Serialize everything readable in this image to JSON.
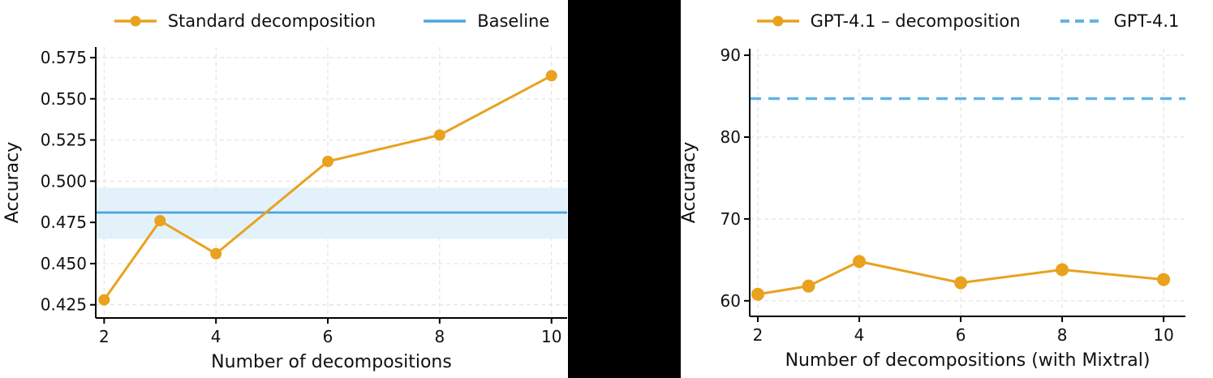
{
  "figure": {
    "background": "#ffffff",
    "divider_color": "#000000",
    "grid_color": "#e3e3e3",
    "spine_color": "#000000",
    "text_color": "#111111"
  },
  "chart_data": [
    {
      "type": "line",
      "title": "",
      "xlabel": "Number of decompositions",
      "ylabel": "Accuracy",
      "x": [
        2,
        3,
        4,
        6,
        8,
        10
      ],
      "series": [
        {
          "name": "Standard decomposition",
          "values": [
            0.428,
            0.476,
            0.456,
            0.512,
            0.528,
            0.564
          ],
          "color": "#E9A21E"
        }
      ],
      "baseline": {
        "name": "Baseline",
        "value": 0.481,
        "band": [
          0.465,
          0.496
        ],
        "color": "#4AA6DC",
        "band_color": "#E3F1FB"
      },
      "xticks": [
        2,
        4,
        6,
        8,
        10
      ],
      "yticks": [
        0.425,
        0.45,
        0.475,
        0.5,
        0.525,
        0.55,
        0.575
      ],
      "ytick_decimals": 3,
      "xlim": [
        1.85,
        10.28
      ],
      "ylim": [
        0.417,
        0.5814
      ],
      "grid": true,
      "legend_position": "top-center",
      "legend": [
        {
          "label": "Standard decomposition",
          "style": "line-marker",
          "color": "#E9A21E"
        },
        {
          "label": "Baseline",
          "style": "line",
          "color": "#4AA6DC"
        }
      ]
    },
    {
      "type": "line",
      "title": "",
      "xlabel": "Number of decompositions (with Mixtral)",
      "ylabel": "Accuracy",
      "x": [
        2,
        3,
        4,
        6,
        8,
        10
      ],
      "series": [
        {
          "name": "GPT-4.1 – decomposition",
          "values": [
            60.8,
            61.8,
            64.8,
            62.2,
            63.8,
            62.6
          ],
          "color": "#E9A21E"
        }
      ],
      "hline": {
        "name": "GPT-4.1",
        "value": 84.7,
        "style": "dashed",
        "color": "#5FB4E6"
      },
      "xticks": [
        2,
        4,
        6,
        8,
        10
      ],
      "yticks": [
        60,
        70,
        80,
        90
      ],
      "ytick_decimals": 0,
      "xlim": [
        1.84,
        10.43
      ],
      "ylim": [
        58.1,
        90.8
      ],
      "grid": true,
      "legend_position": "top-center",
      "legend": [
        {
          "label": "GPT-4.1 – decomposition",
          "style": "line-marker",
          "color": "#E9A21E"
        },
        {
          "label": "GPT-4.1",
          "style": "dashed-line",
          "color": "#5FB4E6"
        }
      ]
    }
  ]
}
